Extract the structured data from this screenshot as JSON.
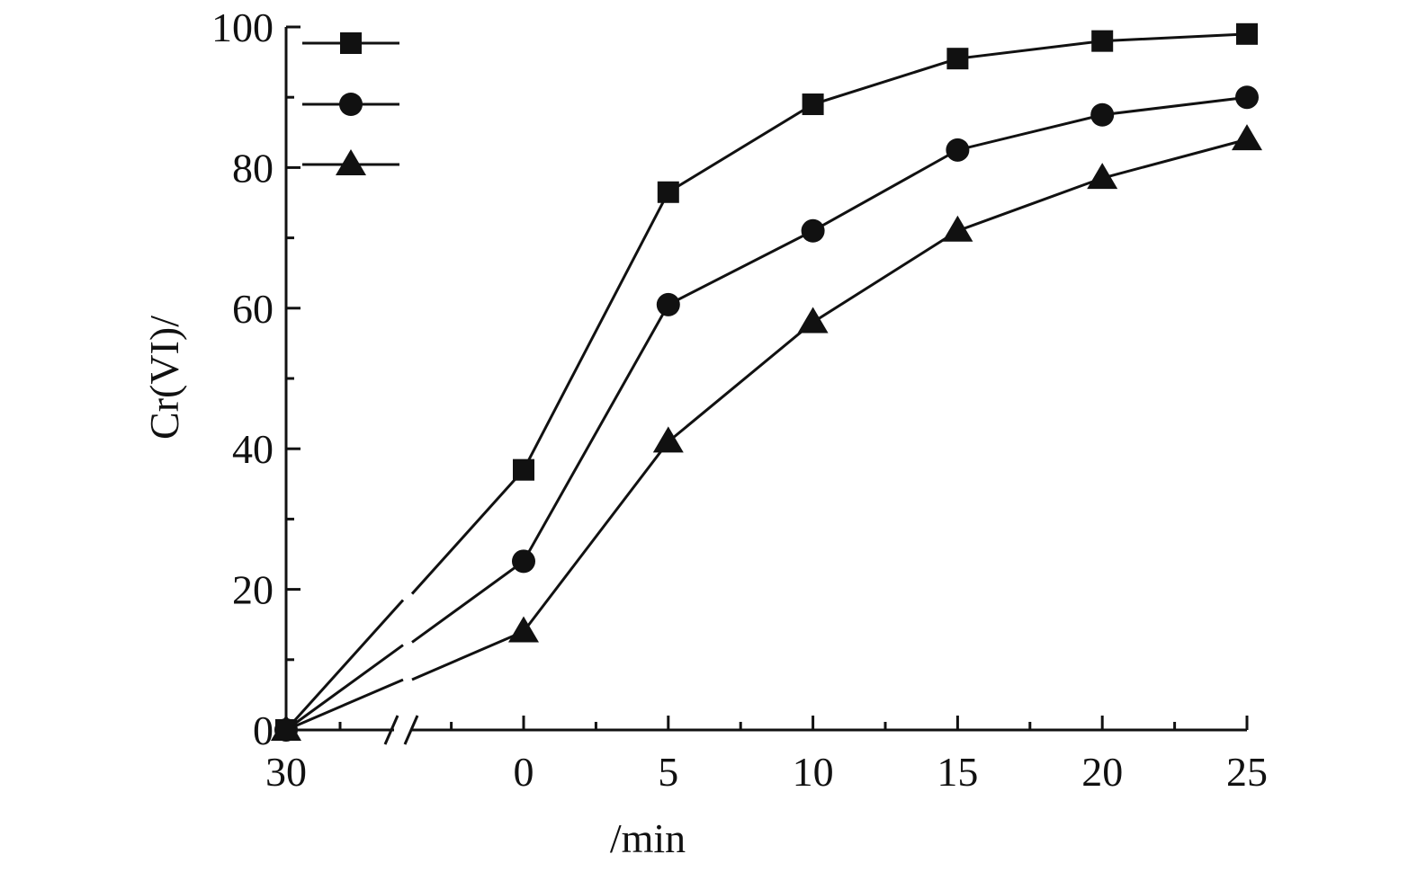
{
  "chart_data": {
    "type": "line",
    "title": "",
    "xlabel": "/min",
    "ylabel": "Cr(VI)/",
    "x_tick_labels": [
      "30",
      "0",
      "5",
      "10",
      "15",
      "20",
      "25"
    ],
    "y_tick_labels": [
      "0",
      "20",
      "40",
      "60",
      "80",
      "100"
    ],
    "xlim": [
      0,
      25
    ],
    "ylim": [
      0,
      100
    ],
    "axis_break": "x-axis between 30 and 0",
    "grid": false,
    "legend": {
      "placement": "top-left",
      "entries": 3
    },
    "x": [
      "30",
      "0",
      "5",
      "10",
      "15",
      "20",
      "25"
    ],
    "series": [
      {
        "marker": "square",
        "color": "#111111",
        "values": [
          0,
          37,
          76.5,
          89,
          95.5,
          98,
          99
        ]
      },
      {
        "marker": "circle",
        "color": "#111111",
        "values": [
          0,
          24,
          60.5,
          71,
          82.5,
          87.5,
          90
        ]
      },
      {
        "marker": "triangle",
        "color": "#111111",
        "values": [
          0,
          14,
          41,
          58,
          71,
          78.5,
          84
        ]
      }
    ]
  }
}
